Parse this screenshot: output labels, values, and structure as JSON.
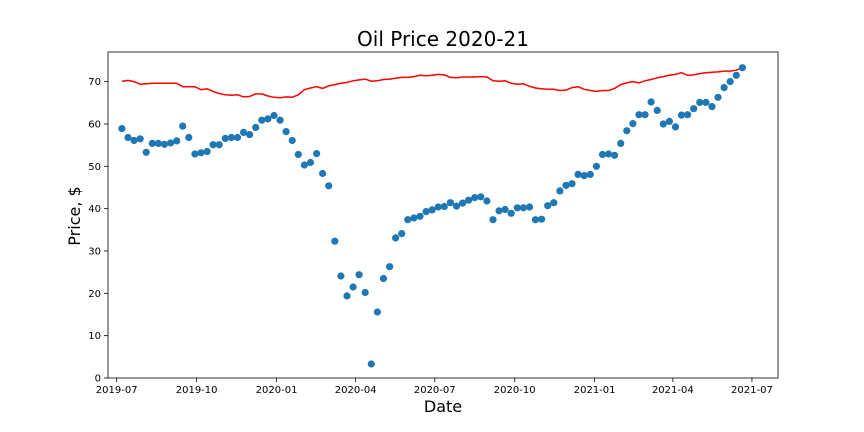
{
  "chart_data": {
    "type": "scatter",
    "title": "Oil Price 2020-21",
    "xlabel": "Date",
    "ylabel": "Price, $",
    "xlim": [
      "2019-06-21",
      "2021-07-31"
    ],
    "ylim": [
      0,
      77
    ],
    "grid": false,
    "x_ticks": [
      "2019-07-01",
      "2019-10-01",
      "2020-01-01",
      "2020-04-01",
      "2020-07-01",
      "2020-10-01",
      "2021-01-01",
      "2021-04-01",
      "2021-07-01"
    ],
    "x_tick_labels": [
      "2019-07",
      "2019-10",
      "2020-01",
      "2020-04",
      "2020-07",
      "2020-10",
      "2021-01",
      "2021-04",
      "2021-07"
    ],
    "y_ticks": [
      0,
      10,
      20,
      30,
      40,
      50,
      60,
      70
    ],
    "series": [
      {
        "kind": "scatter",
        "color": "#1f77b4",
        "x": [
          "2019-07-07",
          "2019-07-14",
          "2019-07-21",
          "2019-07-28",
          "2019-08-04",
          "2019-08-11",
          "2019-08-18",
          "2019-08-25",
          "2019-09-01",
          "2019-09-08",
          "2019-09-15",
          "2019-09-22",
          "2019-09-29",
          "2019-10-06",
          "2019-10-13",
          "2019-10-20",
          "2019-10-27",
          "2019-11-03",
          "2019-11-10",
          "2019-11-17",
          "2019-11-24",
          "2019-12-01",
          "2019-12-08",
          "2019-12-15",
          "2019-12-22",
          "2019-12-29",
          "2020-01-05",
          "2020-01-12",
          "2020-01-19",
          "2020-01-26",
          "2020-02-02",
          "2020-02-09",
          "2020-02-16",
          "2020-02-23",
          "2020-03-01",
          "2020-03-08",
          "2020-03-15",
          "2020-03-22",
          "2020-03-29",
          "2020-04-05",
          "2020-04-12",
          "2020-04-19",
          "2020-04-26",
          "2020-05-03",
          "2020-05-10",
          "2020-05-17",
          "2020-05-24",
          "2020-05-31",
          "2020-06-07",
          "2020-06-14",
          "2020-06-21",
          "2020-06-28",
          "2020-07-05",
          "2020-07-12",
          "2020-07-19",
          "2020-07-26",
          "2020-08-02",
          "2020-08-09",
          "2020-08-16",
          "2020-08-23",
          "2020-08-30",
          "2020-09-06",
          "2020-09-13",
          "2020-09-20",
          "2020-09-27",
          "2020-10-04",
          "2020-10-11",
          "2020-10-18",
          "2020-10-25",
          "2020-11-01",
          "2020-11-08",
          "2020-11-15",
          "2020-11-22",
          "2020-11-29",
          "2020-12-06",
          "2020-12-13",
          "2020-12-20",
          "2020-12-27",
          "2021-01-03",
          "2021-01-10",
          "2021-01-17",
          "2021-01-24",
          "2021-01-31",
          "2021-02-07",
          "2021-02-14",
          "2021-02-21",
          "2021-02-28",
          "2021-03-07",
          "2021-03-14",
          "2021-03-21",
          "2021-03-28",
          "2021-04-04",
          "2021-04-11",
          "2021-04-18",
          "2021-04-25",
          "2021-05-02",
          "2021-05-09",
          "2021-05-16",
          "2021-05-23",
          "2021-05-30",
          "2021-06-06",
          "2021-06-13",
          "2021-06-20"
        ],
        "y": [
          58.9,
          56.8,
          56.1,
          56.5,
          53.3,
          55.4,
          55.4,
          55.2,
          55.5,
          56.0,
          59.5,
          56.8,
          52.9,
          53.2,
          53.5,
          55.1,
          55.1,
          56.6,
          56.8,
          56.8,
          58.0,
          57.5,
          59.2,
          60.9,
          61.2,
          62.0,
          60.9,
          58.2,
          56.1,
          52.8,
          50.3,
          50.9,
          53.0,
          48.3,
          45.4,
          32.3,
          24.1,
          19.4,
          21.5,
          24.4,
          20.2,
          3.3,
          15.6,
          23.5,
          26.3,
          33.1,
          34.1,
          37.4,
          37.8,
          38.2,
          39.3,
          39.7,
          40.4,
          40.5,
          41.4,
          40.6,
          41.3,
          42.0,
          42.6,
          42.8,
          41.8,
          37.4,
          39.5,
          39.8,
          38.9,
          40.2,
          40.2,
          40.4,
          37.4,
          37.5,
          40.7,
          41.4,
          44.2,
          45.5,
          45.9,
          48.1,
          47.8,
          48.1,
          50.0,
          52.8,
          52.9,
          52.6,
          55.4,
          58.4,
          60.1,
          62.2,
          62.2,
          65.2,
          63.2,
          60.0,
          60.6,
          59.3,
          62.1,
          62.2,
          63.6,
          65.1,
          65.1,
          64.1,
          66.3,
          68.6,
          70.0,
          71.5,
          73.3
        ]
      },
      {
        "kind": "line",
        "color": "#ff0000",
        "x": [
          "2019-07-07",
          "2019-07-14",
          "2019-07-21",
          "2019-07-28",
          "2019-08-04",
          "2019-08-11",
          "2019-08-18",
          "2019-08-25",
          "2019-09-01",
          "2019-09-08",
          "2019-09-15",
          "2019-09-22",
          "2019-09-29",
          "2019-10-06",
          "2019-10-13",
          "2019-10-20",
          "2019-10-27",
          "2019-11-03",
          "2019-11-10",
          "2019-11-17",
          "2019-11-24",
          "2019-12-01",
          "2019-12-08",
          "2019-12-15",
          "2019-12-22",
          "2019-12-29",
          "2020-01-05",
          "2020-01-12",
          "2020-01-19",
          "2020-01-26",
          "2020-02-02",
          "2020-02-09",
          "2020-02-16",
          "2020-02-23",
          "2020-03-01",
          "2020-03-08",
          "2020-03-15",
          "2020-03-22",
          "2020-03-29",
          "2020-04-05",
          "2020-04-12",
          "2020-04-19",
          "2020-04-26",
          "2020-05-03",
          "2020-05-10",
          "2020-05-17",
          "2020-05-24",
          "2020-05-31",
          "2020-06-07",
          "2020-06-14",
          "2020-06-21",
          "2020-06-28",
          "2020-07-05",
          "2020-07-12",
          "2020-07-19",
          "2020-07-26",
          "2020-08-02",
          "2020-08-09",
          "2020-08-16",
          "2020-08-23",
          "2020-08-30",
          "2020-09-06",
          "2020-09-13",
          "2020-09-20",
          "2020-09-27",
          "2020-10-04",
          "2020-10-11",
          "2020-10-18",
          "2020-10-25",
          "2020-11-01",
          "2020-11-08",
          "2020-11-15",
          "2020-11-22",
          "2020-11-29",
          "2020-12-06",
          "2020-12-13",
          "2020-12-20",
          "2020-12-27",
          "2021-01-03",
          "2021-01-10",
          "2021-01-17",
          "2021-01-24",
          "2021-01-31",
          "2021-02-07",
          "2021-02-14",
          "2021-02-21",
          "2021-02-28",
          "2021-03-07",
          "2021-03-14",
          "2021-03-21",
          "2021-03-28",
          "2021-04-04",
          "2021-04-11",
          "2021-04-18",
          "2021-04-25",
          "2021-05-02",
          "2021-05-09",
          "2021-05-16",
          "2021-05-23",
          "2021-05-30",
          "2021-06-06",
          "2021-06-13",
          "2021-06-20"
        ],
        "y": [
          70.1,
          70.3,
          70.0,
          69.4,
          69.5,
          69.6,
          69.6,
          69.6,
          69.6,
          69.6,
          68.8,
          68.8,
          68.8,
          68.1,
          68.3,
          67.7,
          67.2,
          66.9,
          66.8,
          66.9,
          66.4,
          66.5,
          67.1,
          67.1,
          66.6,
          66.3,
          66.2,
          66.4,
          66.3,
          66.9,
          68.1,
          68.5,
          68.8,
          68.4,
          69.0,
          69.3,
          69.6,
          69.8,
          70.2,
          70.4,
          70.6,
          70.1,
          70.2,
          70.5,
          70.6,
          70.8,
          71.0,
          71.0,
          71.2,
          71.5,
          71.4,
          71.5,
          71.7,
          71.6,
          71.0,
          70.9,
          71.1,
          71.1,
          71.1,
          71.2,
          71.1,
          70.2,
          70.1,
          70.2,
          69.6,
          69.4,
          69.5,
          68.9,
          68.5,
          68.3,
          68.2,
          68.2,
          67.9,
          68.0,
          68.6,
          68.8,
          68.2,
          67.9,
          67.7,
          67.9,
          67.9,
          68.4,
          69.3,
          69.7,
          70.0,
          69.7,
          70.2,
          70.5,
          70.9,
          71.2,
          71.5,
          71.7,
          72.1,
          71.5,
          71.6,
          71.9,
          72.1,
          72.2,
          72.3,
          72.5,
          72.5,
          72.7,
          73.2
        ]
      }
    ]
  }
}
